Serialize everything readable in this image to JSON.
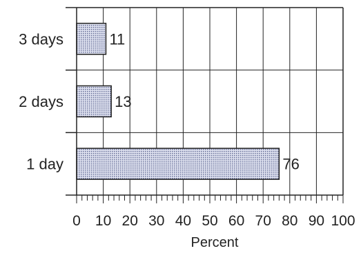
{
  "chart_data": {
    "type": "bar",
    "orientation": "horizontal",
    "categories": [
      "3 days",
      "2 days",
      "1 day"
    ],
    "values": [
      11,
      13,
      76
    ],
    "value_labels": [
      "11",
      "13",
      "76"
    ],
    "xlabel": "Percent",
    "ylabel": "",
    "xlim": [
      0,
      100
    ],
    "xticks": [
      0,
      10,
      20,
      30,
      40,
      50,
      60,
      70,
      80,
      90,
      100
    ],
    "xtick_labels": [
      "0",
      "10",
      "20",
      "30",
      "40",
      "50",
      "60",
      "70",
      "80",
      "90",
      "100"
    ],
    "minor_tick_step": 2,
    "grid": true,
    "bar_fill": "#b9c0dc",
    "bar_stroke": "#222222",
    "line_color": "#222222"
  }
}
